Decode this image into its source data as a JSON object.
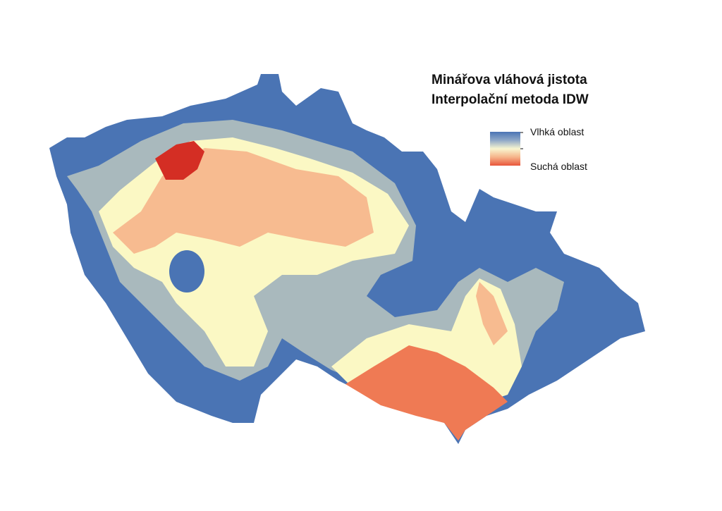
{
  "title": {
    "line1": "Minářova vláhová jistota",
    "line2": "Interpolační metoda IDW"
  },
  "legend": {
    "high": "Vlhká oblast",
    "low": "Suchá oblast"
  }
}
